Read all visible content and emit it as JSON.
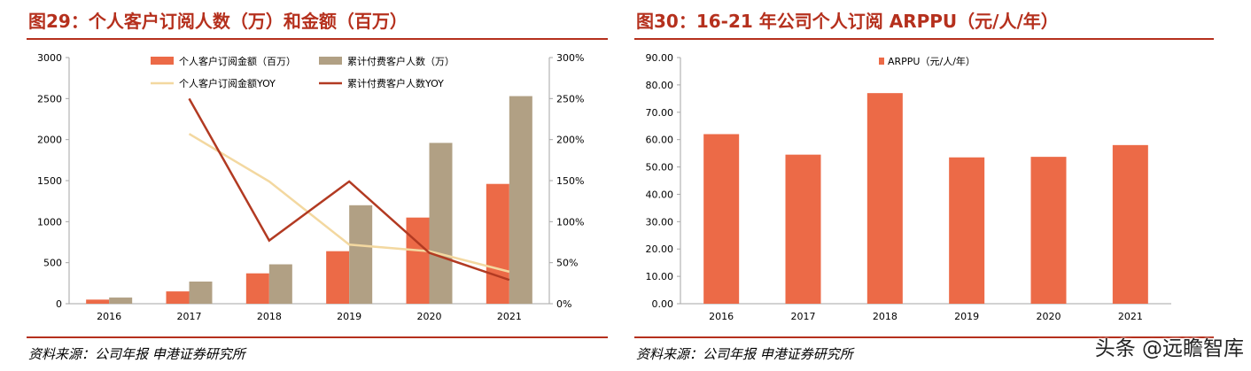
{
  "left": {
    "title": "图29：个人客户订阅人数（万）和金额（百万）",
    "source": "资料来源：公司年报  申港证券研究所"
  },
  "right": {
    "title": "图30：16-21 年公司个人订阅 ARPPU（元/人/年）",
    "source": "资料来源：公司年报  申港证券研究所"
  },
  "watermark": "头条 @远瞻智库",
  "colors": {
    "accent": "#b5301d",
    "bar_orange": "#ec6a47",
    "bar_tan": "#b1a084",
    "line_yellow": "#f3d8a0",
    "line_red": "#b23a22",
    "axis": "#a6a6a6"
  },
  "chart_data": [
    {
      "type": "bar+line",
      "title": "图29：个人客户订阅人数（万）和金额（百万）",
      "categories": [
        "2016",
        "2017",
        "2018",
        "2019",
        "2020",
        "2021"
      ],
      "bar_series": [
        {
          "name": "个人客户订阅金额（百万）",
          "values": [
            50,
            150,
            370,
            640,
            1050,
            1460
          ]
        },
        {
          "name": "累计付费客户人数（万）",
          "values": [
            75,
            270,
            480,
            1200,
            1960,
            2530
          ]
        }
      ],
      "line_series": [
        {
          "name": "个人客户订阅金额YOY",
          "values": [
            null,
            2.07,
            1.49,
            0.72,
            0.64,
            0.39
          ]
        },
        {
          "name": "累计付费客户人数YOY",
          "values": [
            null,
            2.5,
            0.77,
            1.49,
            0.62,
            0.29
          ]
        }
      ],
      "y_left": {
        "min": 0,
        "max": 3000,
        "ticks": [
          "0",
          "500",
          "1000",
          "1500",
          "2000",
          "2500",
          "3000"
        ]
      },
      "y_right": {
        "min": 0,
        "max": 3,
        "ticks": [
          "0%",
          "50%",
          "100%",
          "150%",
          "200%",
          "250%",
          "300%"
        ]
      },
      "legend_position": "top"
    },
    {
      "type": "bar",
      "title": "图30：16-21 年公司个人订阅 ARPPU（元/人/年）",
      "categories": [
        "2016",
        "2017",
        "2018",
        "2019",
        "2020",
        "2021"
      ],
      "series": [
        {
          "name": "ARPPU（元/人/年）",
          "values": [
            62.0,
            54.5,
            77.0,
            53.5,
            53.7,
            58.0
          ]
        }
      ],
      "y": {
        "min": 0,
        "max": 90,
        "ticks": [
          "0.00",
          "10.00",
          "20.00",
          "30.00",
          "40.00",
          "50.00",
          "60.00",
          "70.00",
          "80.00",
          "90.00"
        ]
      },
      "legend_position": "top"
    }
  ]
}
